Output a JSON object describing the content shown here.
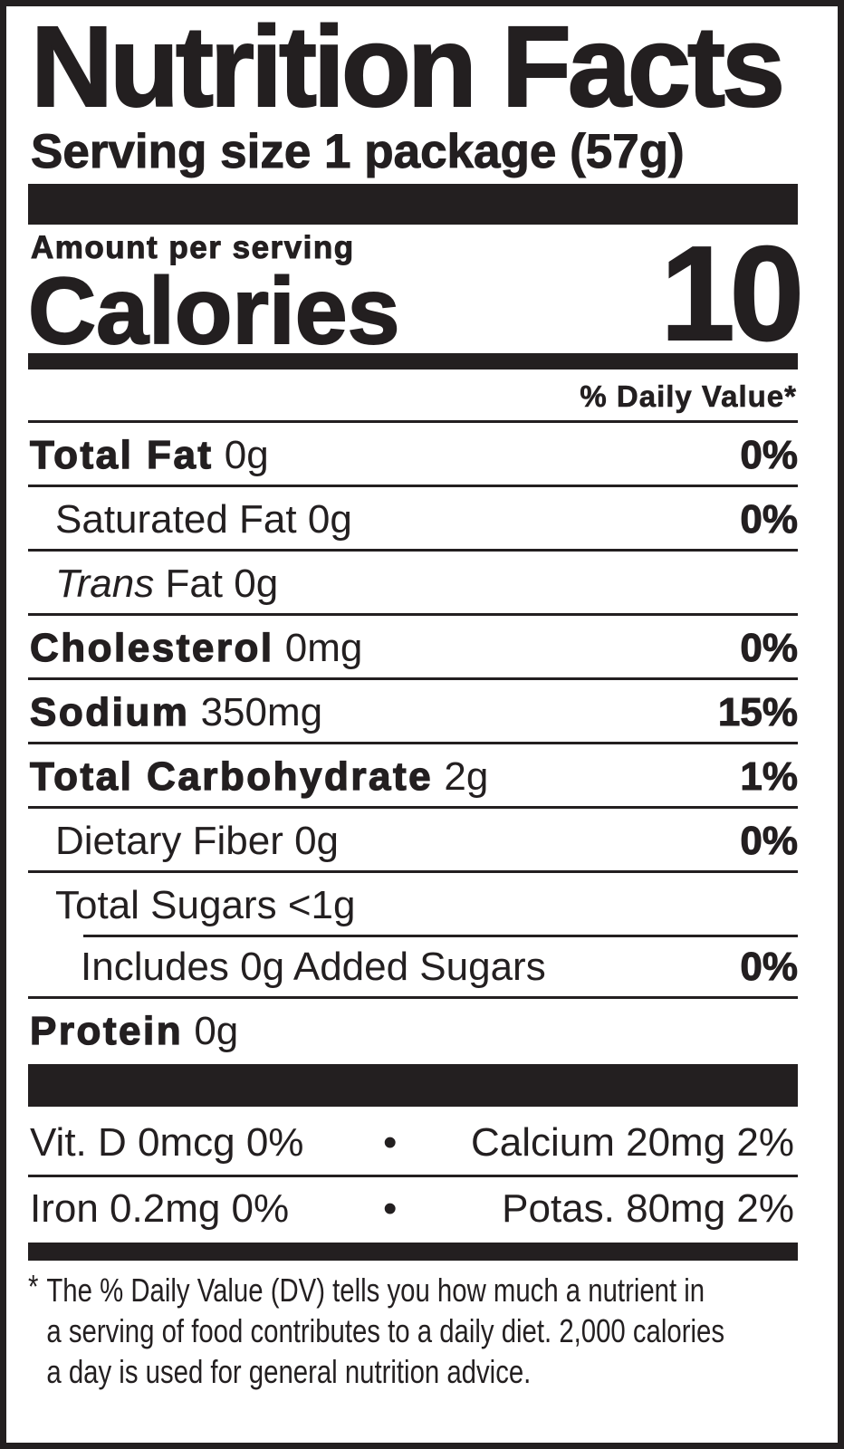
{
  "title": "Nutrition Facts",
  "serving_size": "Serving size 1 package (57g)",
  "amount_per_serving": "Amount per serving",
  "calories": {
    "label": "Calories",
    "value": "10"
  },
  "daily_value_header": "% Daily Value*",
  "nutrients": [
    {
      "name": "Total Fat",
      "amount": "0g",
      "dv": "0%"
    },
    {
      "name": "Saturated Fat",
      "amount": "0g",
      "dv": "0%"
    },
    {
      "name": "Trans",
      "amount": "Fat 0g",
      "dv": ""
    },
    {
      "name": "Cholesterol",
      "amount": "0mg",
      "dv": "0%"
    },
    {
      "name": "Sodium",
      "amount": "350mg",
      "dv": "15%"
    },
    {
      "name": "Total Carbohydrate",
      "amount": "2g",
      "dv": "1%"
    },
    {
      "name": "Dietary Fiber",
      "amount": "0g",
      "dv": "0%"
    },
    {
      "name": "Total Sugars",
      "amount": "<1g",
      "dv": ""
    },
    {
      "name": "Includes 0g Added Sugars",
      "amount": "",
      "dv": "0%"
    },
    {
      "name": "Protein",
      "amount": "0g",
      "dv": ""
    }
  ],
  "micronutrients": [
    {
      "left": "Vit. D 0mcg 0%",
      "separator": "•",
      "right": "Calcium 20mg 2%"
    },
    {
      "left": "Iron 0.2mg 0%",
      "separator": "•",
      "right": "Potas. 80mg 2%"
    }
  ],
  "footnote": {
    "asterisk": "*",
    "lines": [
      "The % Daily Value (DV) tells you how much a nutrient in",
      "a serving of food contributes to a daily diet. 2,000 calories",
      "a day is used for general nutrition advice."
    ]
  }
}
